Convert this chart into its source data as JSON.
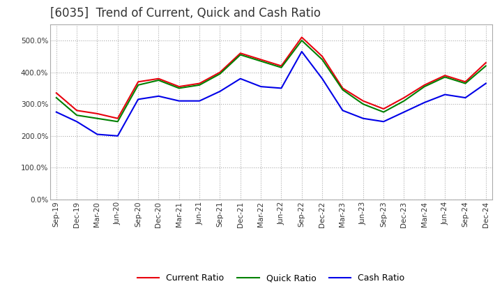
{
  "title": "[6035]  Trend of Current, Quick and Cash Ratio",
  "ylim": [
    0.0,
    550.0
  ],
  "yticks": [
    0.0,
    100.0,
    200.0,
    300.0,
    400.0,
    500.0
  ],
  "x_labels": [
    "Sep-19",
    "Dec-19",
    "Mar-20",
    "Jun-20",
    "Sep-20",
    "Dec-20",
    "Mar-21",
    "Jun-21",
    "Sep-21",
    "Dec-21",
    "Mar-22",
    "Jun-22",
    "Sep-22",
    "Dec-22",
    "Mar-23",
    "Jun-23",
    "Sep-23",
    "Dec-23",
    "Mar-24",
    "Jun-24",
    "Sep-24",
    "Dec-24"
  ],
  "current_ratio": [
    335,
    280,
    270,
    255,
    370,
    380,
    355,
    365,
    400,
    460,
    440,
    420,
    510,
    450,
    350,
    310,
    285,
    320,
    360,
    390,
    370,
    430
  ],
  "quick_ratio": [
    320,
    265,
    255,
    245,
    360,
    375,
    350,
    360,
    395,
    455,
    435,
    415,
    500,
    440,
    345,
    300,
    275,
    310,
    355,
    385,
    365,
    420
  ],
  "cash_ratio": [
    275,
    245,
    205,
    200,
    315,
    325,
    310,
    310,
    340,
    380,
    355,
    350,
    465,
    380,
    280,
    255,
    245,
    275,
    305,
    330,
    320,
    365
  ],
  "current_color": "#e8000d",
  "quick_color": "#008000",
  "cash_color": "#0000e8",
  "line_width": 1.5,
  "grid_color": "#aaaaaa",
  "background_color": "#ffffff",
  "plot_bg_color": "#ffffff",
  "title_fontsize": 12,
  "tick_fontsize": 7.5,
  "legend_fontsize": 9
}
